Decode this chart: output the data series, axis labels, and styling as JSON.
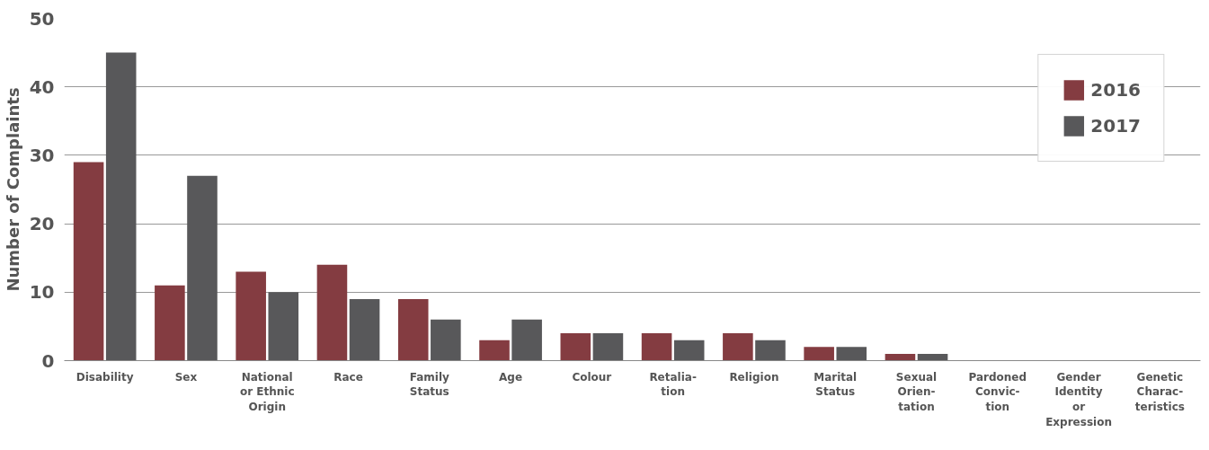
{
  "chart_data": {
    "type": "bar",
    "ylabel": "Number of Complaints",
    "categories": [
      "Disability",
      "Sex",
      "National\nor Ethnic\nOrigin",
      "Race",
      "Family\nStatus",
      "Age",
      "Colour",
      "Retalia-\ntion",
      "Religion",
      "Marital\nStatus",
      "Sexual\nOrien-\ntation",
      "Pardoned\nConvic-\ntion",
      "Gender\nIdentity\nor\nExpression",
      "Genetic\nCharac-\nteristics"
    ],
    "series": [
      {
        "name": "2016",
        "color": "#843c41",
        "values": [
          29,
          11,
          13,
          14,
          9,
          3,
          4,
          4,
          4,
          2,
          1,
          0,
          0,
          0
        ]
      },
      {
        "name": "2017",
        "color": "#58585a",
        "values": [
          45,
          27,
          10,
          9,
          6,
          6,
          4,
          3,
          3,
          2,
          1,
          0,
          0,
          0
        ]
      }
    ],
    "ylim": [
      0,
      50
    ],
    "yticks": [
      0,
      10,
      20,
      30,
      40,
      50
    ],
    "grid": "y",
    "legend": "top right"
  }
}
